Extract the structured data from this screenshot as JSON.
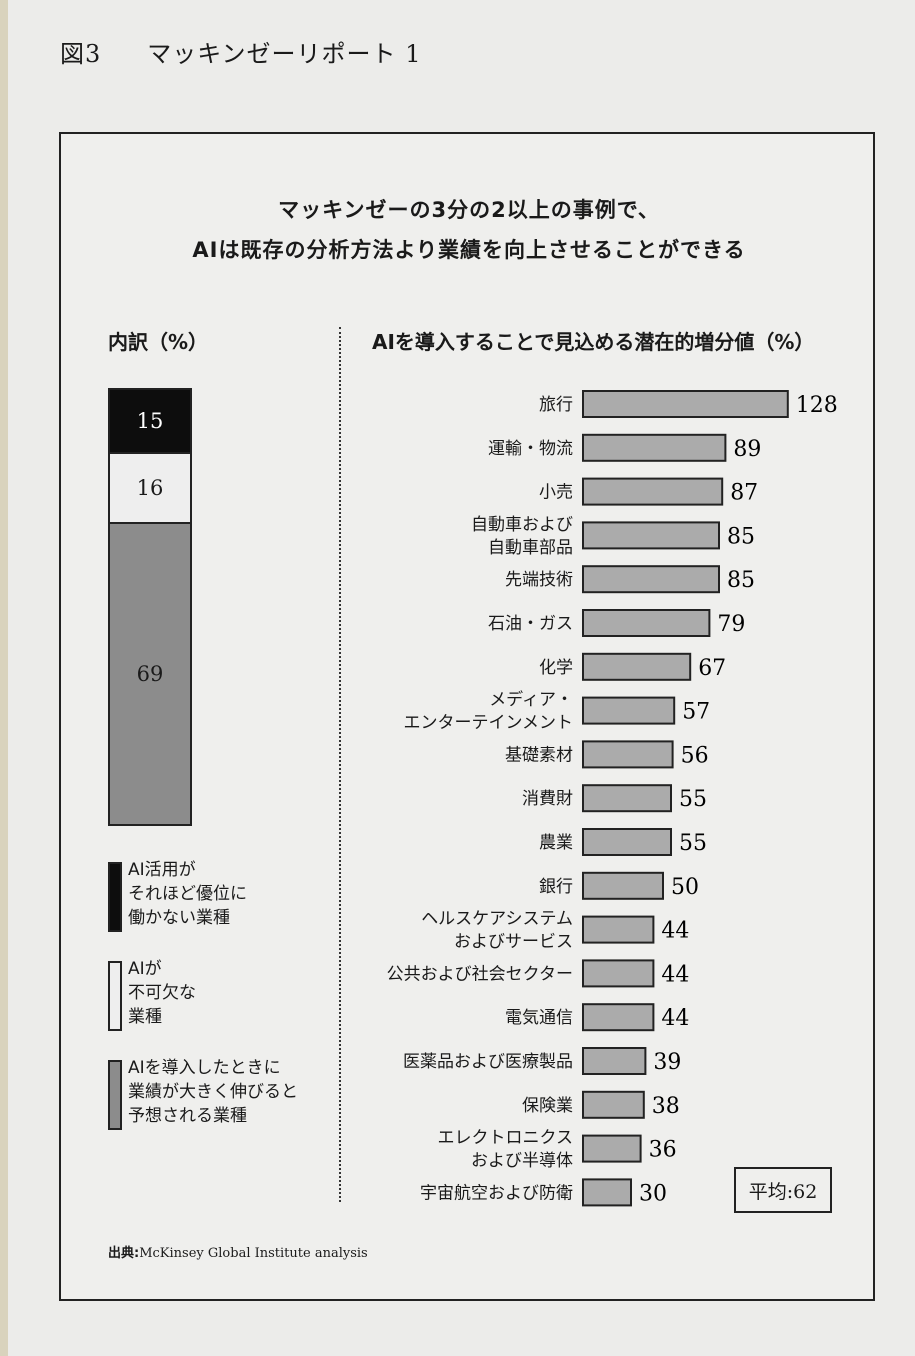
{
  "figure_title": {
    "number": "図3",
    "name": "マッキンゼーリポート 1"
  },
  "headline": {
    "line1": "マッキンゼーの3分の2以上の事例で、",
    "line2": "AIは既存の分析方法より業績を向上させることができる"
  },
  "left_panel": {
    "heading": "内訳（%）",
    "legend": [
      {
        "text": "AI活用が\nそれほど優位に\n働かない業種",
        "color": "#0d0d0d"
      },
      {
        "text": "AIが\n不可欠な\n業種",
        "color": "#eeeeee"
      },
      {
        "text": "AIを導入したときに\n業績が大きく伸びると\n予想される業種",
        "color": "#8c8c8c"
      }
    ]
  },
  "right_panel": {
    "heading": "AIを導入することで見込める潜在的増分値（%）"
  },
  "average_label": "平均:62",
  "source": {
    "label": "出典:",
    "text": "McKinsey Global Institute analysis"
  },
  "chart_data": [
    {
      "type": "bar",
      "orientation": "vertical-stacked",
      "title": "内訳（%）",
      "series": [
        {
          "name": "AI活用がそれほど優位に働かない業種",
          "values": [
            15
          ],
          "color": "#0d0d0d"
        },
        {
          "name": "AIが不可欠な業種",
          "values": [
            16
          ],
          "color": "#eeeeee"
        },
        {
          "name": "AIを導入したときに業績が大きく伸びると予想される業種",
          "values": [
            69
          ],
          "color": "#8c8c8c"
        }
      ],
      "total": 100
    },
    {
      "type": "bar",
      "orientation": "horizontal",
      "title": "AIを導入することで見込める潜在的増分値（%）",
      "bar_color": "#ababab",
      "categories": [
        "旅行",
        "運輸・物流",
        "小売",
        "自動車および\n自動車部品",
        "先端技術",
        "石油・ガス",
        "化学",
        "メディア・\nエンターテインメント",
        "基礎素材",
        "消費財",
        "農業",
        "銀行",
        "ヘルスケアシステム\nおよびサービス",
        "公共および社会セクター",
        "電気通信",
        "医薬品および医療製品",
        "保険業",
        "エレクトロニクス\nおよび半導体",
        "宇宙航空および防衛"
      ],
      "values": [
        128,
        89,
        87,
        85,
        85,
        79,
        67,
        57,
        56,
        55,
        55,
        50,
        44,
        44,
        44,
        39,
        38,
        36,
        30
      ],
      "average": 62
    }
  ]
}
